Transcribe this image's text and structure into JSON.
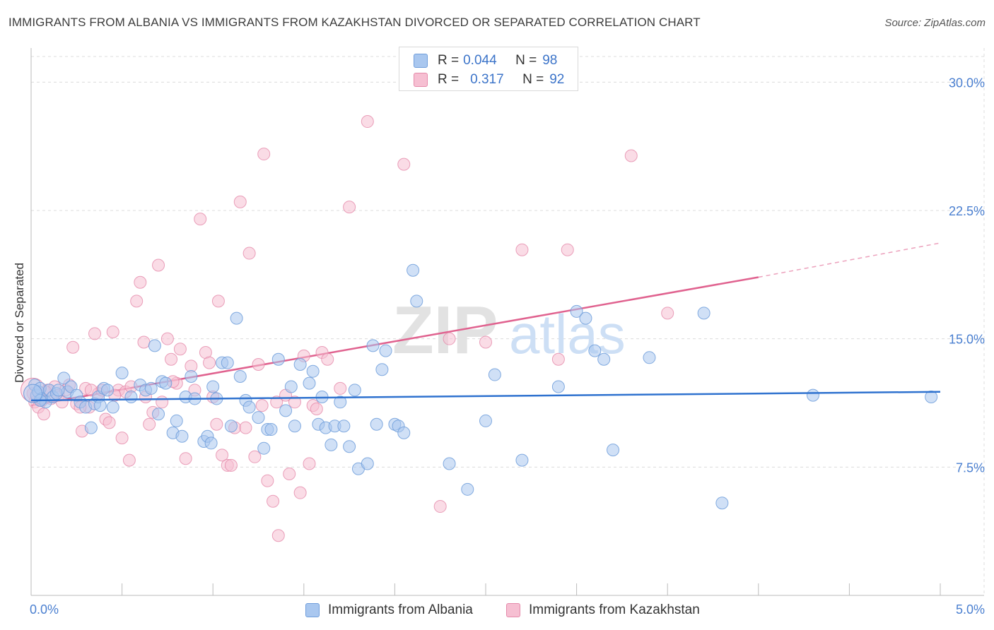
{
  "title": "IMMIGRANTS FROM ALBANIA VS IMMIGRANTS FROM KAZAKHSTAN DIVORCED OR SEPARATED CORRELATION CHART",
  "source": "Source: ZipAtlas.com",
  "watermark": {
    "zip": "ZIP",
    "atlas": "atlas"
  },
  "colors": {
    "albania_fill": "#a9c7ef",
    "albania_stroke": "#6f9ddb",
    "albania_line": "#2f72cf",
    "kazakhstan_fill": "#f6bfd2",
    "kazakhstan_stroke": "#e58aaa",
    "kazakhstan_line": "#e0628f",
    "tick_text": "#4a7fd0",
    "grid": "#dcdcdc"
  },
  "legend_top": {
    "albania": {
      "r_label": "R =",
      "r_value": "0.044",
      "n_label": "N =",
      "n_value": "98"
    },
    "kazakhstan": {
      "r_label": "R =",
      "r_value": "0.317",
      "n_label": "N =",
      "n_value": "92"
    }
  },
  "legend_bottom": {
    "albania": "Immigrants from Albania",
    "kazakhstan": "Immigrants from Kazakhstan"
  },
  "chart_data": {
    "type": "scatter",
    "title": "IMMIGRANTS FROM ALBANIA VS IMMIGRANTS FROM KAZAKHSTAN DIVORCED OR SEPARATED CORRELATION CHART",
    "xlabel": "",
    "ylabel": "Divorced or Separated",
    "xlim": [
      0,
      5
    ],
    "ylim": [
      0,
      31.5
    ],
    "x_unit": "%",
    "y_unit": "%",
    "x_tick_labels": [
      "0.0%",
      "5.0%"
    ],
    "y_tick_labels": [
      {
        "value": 7.5,
        "label": "7.5%"
      },
      {
        "value": 15.0,
        "label": "15.0%"
      },
      {
        "value": 22.5,
        "label": "22.5%"
      },
      {
        "value": 30.0,
        "label": "30.0%"
      }
    ],
    "grid": true,
    "legend_position": "top-center",
    "series": [
      {
        "name": "Immigrants from Albania",
        "R": 0.044,
        "N": 98,
        "trend": {
          "x": [
            0,
            5.0
          ],
          "y": [
            11.4,
            11.9
          ]
        },
        "points": [
          [
            0.02,
            12.3
          ],
          [
            0.03,
            11.7
          ],
          [
            0.04,
            11.9
          ],
          [
            0.05,
            12.1
          ],
          [
            0.06,
            11.5
          ],
          [
            0.08,
            11.3
          ],
          [
            0.1,
            12.0
          ],
          [
            0.12,
            11.6
          ],
          [
            0.14,
            11.8
          ],
          [
            0.18,
            12.7
          ],
          [
            0.2,
            11.9
          ],
          [
            0.22,
            12.2
          ],
          [
            0.25,
            11.7
          ],
          [
            0.27,
            11.3
          ],
          [
            0.3,
            11.0
          ],
          [
            0.35,
            11.2
          ],
          [
            0.37,
            11.6
          ],
          [
            0.38,
            11.1
          ],
          [
            0.45,
            11.0
          ],
          [
            0.5,
            13.0
          ],
          [
            0.55,
            11.6
          ],
          [
            0.6,
            12.3
          ],
          [
            0.63,
            12.0
          ],
          [
            0.66,
            12.1
          ],
          [
            0.68,
            14.6
          ],
          [
            0.7,
            10.6
          ],
          [
            0.72,
            12.5
          ],
          [
            0.74,
            12.4
          ],
          [
            0.78,
            9.5
          ],
          [
            0.8,
            10.2
          ],
          [
            0.83,
            9.3
          ],
          [
            0.85,
            11.6
          ],
          [
            0.88,
            12.8
          ],
          [
            0.95,
            9.0
          ],
          [
            0.97,
            9.3
          ],
          [
            0.99,
            8.9
          ],
          [
            1.0,
            12.2
          ],
          [
            1.02,
            11.5
          ],
          [
            1.05,
            13.6
          ],
          [
            1.08,
            13.6
          ],
          [
            1.1,
            9.9
          ],
          [
            1.13,
            16.2
          ],
          [
            1.15,
            12.8
          ],
          [
            1.18,
            11.4
          ],
          [
            1.2,
            11.0
          ],
          [
            1.25,
            10.4
          ],
          [
            1.28,
            8.6
          ],
          [
            1.3,
            9.7
          ],
          [
            1.32,
            9.7
          ],
          [
            1.36,
            13.8
          ],
          [
            1.4,
            10.8
          ],
          [
            1.43,
            12.2
          ],
          [
            1.45,
            9.9
          ],
          [
            1.48,
            13.5
          ],
          [
            1.53,
            12.4
          ],
          [
            1.55,
            13.1
          ],
          [
            1.58,
            10.0
          ],
          [
            1.6,
            11.6
          ],
          [
            1.62,
            9.8
          ],
          [
            1.65,
            8.8
          ],
          [
            1.67,
            9.9
          ],
          [
            1.7,
            11.3
          ],
          [
            1.75,
            8.7
          ],
          [
            1.78,
            12.0
          ],
          [
            1.8,
            7.4
          ],
          [
            1.85,
            7.7
          ],
          [
            1.88,
            14.6
          ],
          [
            1.9,
            10.0
          ],
          [
            1.93,
            13.2
          ],
          [
            1.95,
            14.3
          ],
          [
            2.0,
            10.0
          ],
          [
            2.02,
            9.9
          ],
          [
            2.05,
            9.5
          ],
          [
            2.1,
            19.0
          ],
          [
            2.12,
            17.2
          ],
          [
            2.3,
            7.7
          ],
          [
            2.4,
            6.2
          ],
          [
            2.5,
            10.2
          ],
          [
            2.55,
            12.9
          ],
          [
            2.7,
            7.9
          ],
          [
            2.9,
            12.2
          ],
          [
            3.0,
            16.6
          ],
          [
            3.05,
            16.2
          ],
          [
            3.1,
            14.3
          ],
          [
            3.15,
            13.8
          ],
          [
            3.2,
            8.5
          ],
          [
            3.4,
            13.9
          ],
          [
            3.7,
            16.5
          ],
          [
            3.8,
            5.4
          ],
          [
            4.3,
            11.7
          ],
          [
            4.95,
            11.6
          ],
          [
            0.4,
            12.1
          ],
          [
            0.42,
            12.0
          ],
          [
            0.05,
            11.4
          ],
          [
            0.15,
            12.0
          ],
          [
            0.33,
            9.8
          ],
          [
            0.9,
            11.5
          ],
          [
            1.72,
            9.9
          ]
        ]
      },
      {
        "name": "Immigrants from Kazakhstan",
        "R": 0.317,
        "N": 92,
        "trend": {
          "x": [
            0,
            4.0
          ],
          "y": [
            11.1,
            18.6
          ]
        },
        "trend_extension": {
          "x": [
            4.0,
            5.0
          ],
          "y": [
            18.6,
            20.6
          ]
        },
        "points": [
          [
            0.01,
            11.8
          ],
          [
            0.02,
            11.3
          ],
          [
            0.03,
            11.6
          ],
          [
            0.04,
            11.0
          ],
          [
            0.06,
            11.4
          ],
          [
            0.07,
            10.6
          ],
          [
            0.09,
            12.0
          ],
          [
            0.11,
            11.5
          ],
          [
            0.13,
            12.2
          ],
          [
            0.15,
            11.7
          ],
          [
            0.17,
            11.3
          ],
          [
            0.19,
            12.0
          ],
          [
            0.21,
            12.3
          ],
          [
            0.23,
            14.5
          ],
          [
            0.25,
            11.2
          ],
          [
            0.28,
            9.6
          ],
          [
            0.3,
            12.1
          ],
          [
            0.32,
            11.0
          ],
          [
            0.35,
            15.3
          ],
          [
            0.37,
            11.8
          ],
          [
            0.39,
            12.0
          ],
          [
            0.41,
            10.3
          ],
          [
            0.43,
            10.1
          ],
          [
            0.45,
            15.4
          ],
          [
            0.48,
            12.0
          ],
          [
            0.5,
            9.2
          ],
          [
            0.52,
            11.9
          ],
          [
            0.55,
            12.2
          ],
          [
            0.58,
            17.2
          ],
          [
            0.6,
            18.3
          ],
          [
            0.62,
            14.8
          ],
          [
            0.65,
            10.0
          ],
          [
            0.67,
            10.7
          ],
          [
            0.7,
            19.3
          ],
          [
            0.72,
            11.3
          ],
          [
            0.75,
            15.0
          ],
          [
            0.77,
            13.8
          ],
          [
            0.8,
            12.4
          ],
          [
            0.82,
            14.4
          ],
          [
            0.85,
            8.0
          ],
          [
            0.88,
            13.4
          ],
          [
            0.9,
            12.0
          ],
          [
            0.93,
            22.0
          ],
          [
            0.96,
            14.2
          ],
          [
            0.98,
            13.6
          ],
          [
            1.0,
            11.6
          ],
          [
            1.03,
            17.2
          ],
          [
            1.05,
            8.2
          ],
          [
            1.08,
            7.6
          ],
          [
            1.1,
            7.6
          ],
          [
            1.12,
            9.8
          ],
          [
            1.15,
            23.0
          ],
          [
            1.18,
            9.8
          ],
          [
            1.2,
            20.0
          ],
          [
            1.23,
            8.1
          ],
          [
            1.25,
            13.5
          ],
          [
            1.28,
            25.8
          ],
          [
            1.3,
            6.7
          ],
          [
            1.33,
            5.5
          ],
          [
            1.35,
            11.3
          ],
          [
            1.4,
            11.7
          ],
          [
            1.42,
            7.1
          ],
          [
            1.45,
            11.3
          ],
          [
            1.48,
            6.0
          ],
          [
            1.5,
            14.0
          ],
          [
            1.53,
            7.7
          ],
          [
            1.55,
            11.1
          ],
          [
            1.6,
            14.2
          ],
          [
            1.63,
            13.8
          ],
          [
            1.7,
            12.1
          ],
          [
            1.75,
            22.7
          ],
          [
            1.85,
            27.7
          ],
          [
            2.05,
            25.2
          ],
          [
            2.25,
            5.2
          ],
          [
            2.3,
            15.0
          ],
          [
            2.5,
            14.8
          ],
          [
            2.7,
            20.2
          ],
          [
            2.9,
            13.8
          ],
          [
            2.95,
            20.2
          ],
          [
            3.3,
            25.7
          ],
          [
            3.5,
            16.5
          ],
          [
            1.36,
            3.5
          ],
          [
            0.08,
            11.9
          ],
          [
            0.27,
            11.0
          ],
          [
            0.46,
            11.7
          ],
          [
            0.54,
            7.9
          ],
          [
            0.63,
            11.6
          ],
          [
            0.78,
            12.5
          ],
          [
            1.02,
            10.0
          ],
          [
            1.27,
            11.1
          ],
          [
            1.57,
            10.9
          ],
          [
            0.33,
            12.0
          ]
        ]
      }
    ]
  }
}
